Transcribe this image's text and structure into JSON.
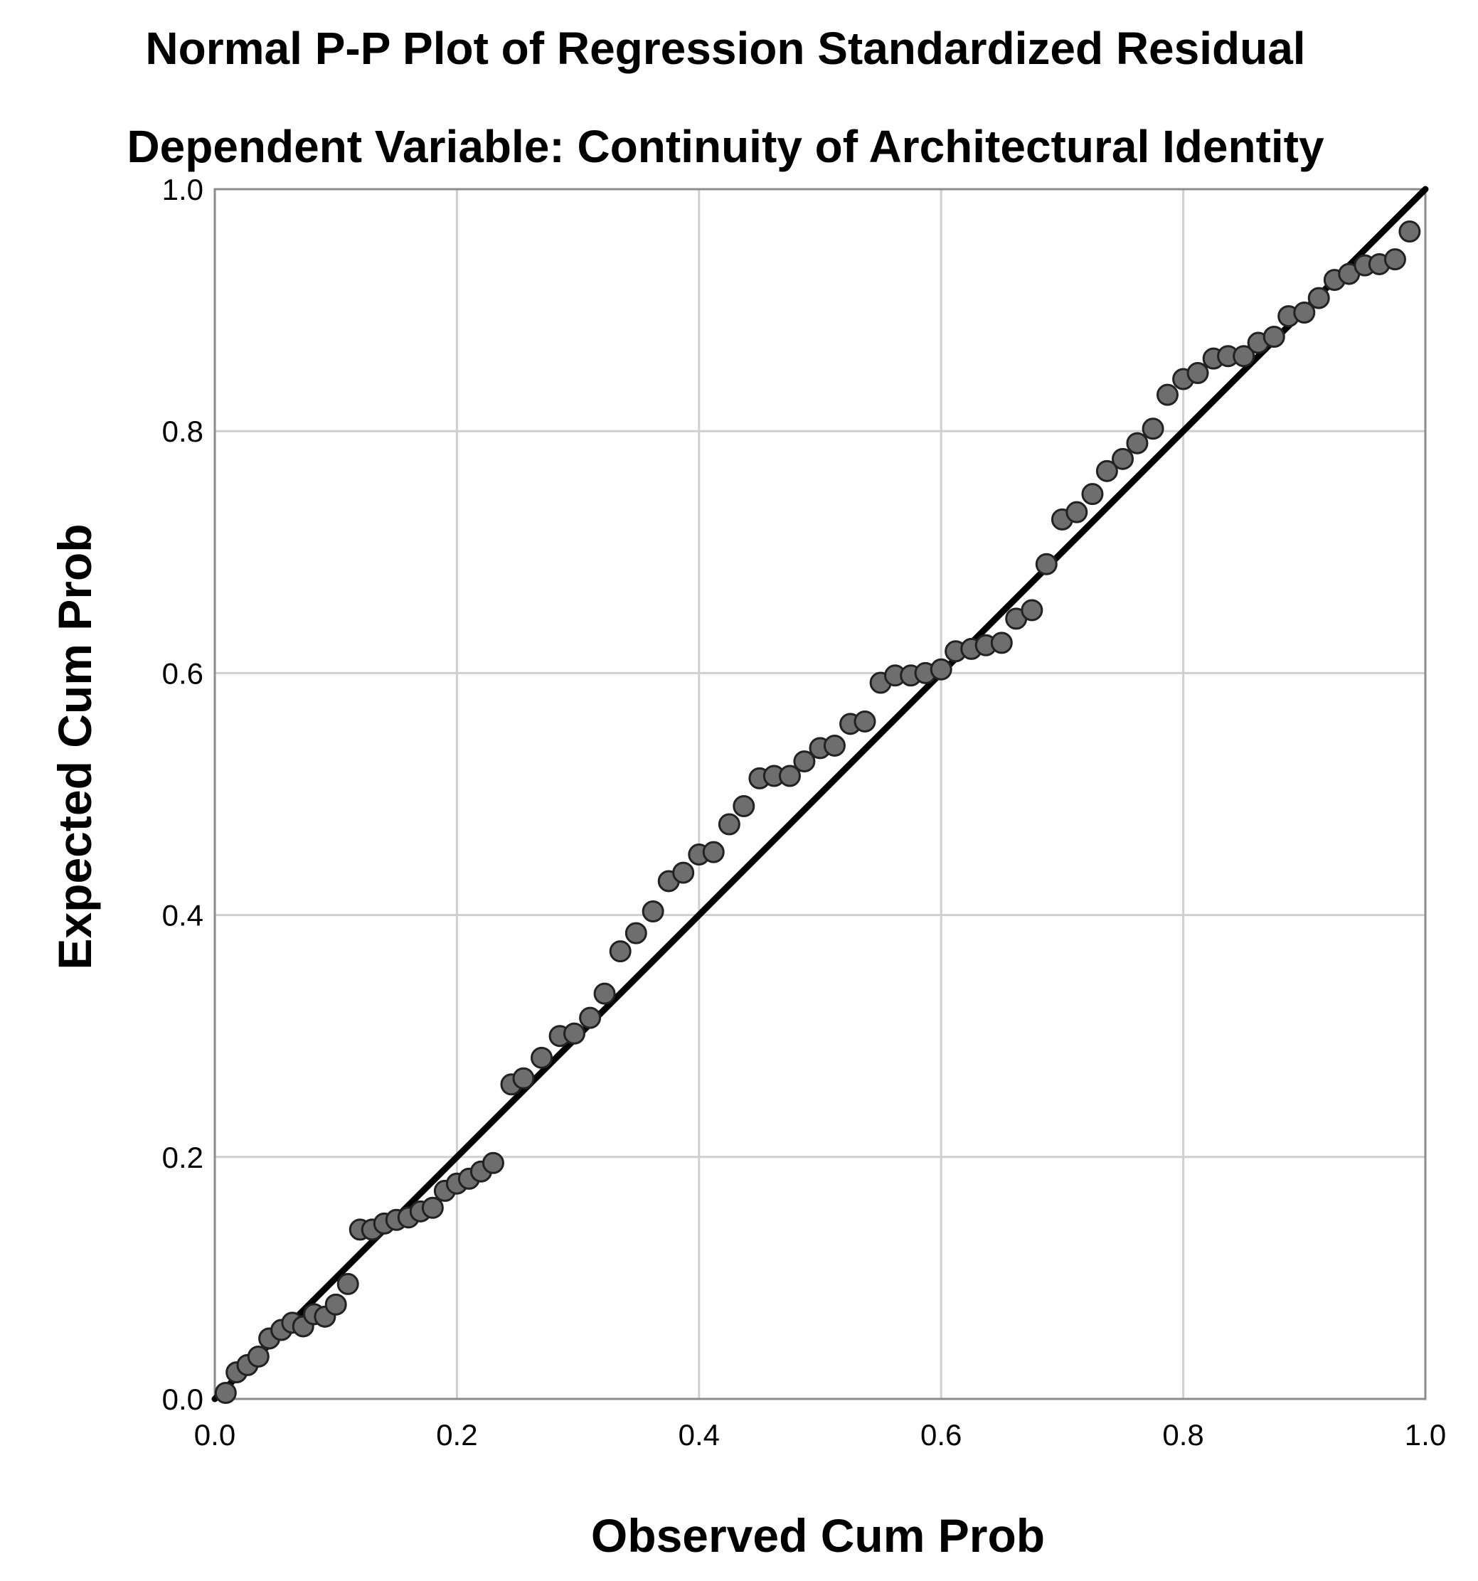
{
  "chart_data": {
    "type": "scatter",
    "title": "Normal P-P Plot of Regression Standardized Residual",
    "subtitle": "Dependent Variable: Continuity of Architectural Identity",
    "xlabel": "Observed Cum Prob",
    "ylabel": "Expected Cum Prob",
    "xlim": [
      0.0,
      1.0
    ],
    "ylim": [
      0.0,
      1.0
    ],
    "x_ticks": [
      "0.0",
      "0.2",
      "0.4",
      "0.6",
      "0.8",
      "1.0"
    ],
    "y_ticks": [
      "0.0",
      "0.2",
      "0.4",
      "0.6",
      "0.8",
      "1.0"
    ],
    "grid": true,
    "reference_line": {
      "x": [
        0.0,
        1.0
      ],
      "y": [
        0.0,
        1.0
      ]
    },
    "colors": {
      "points_fill": "#6e6e6e",
      "points_stroke": "#222222",
      "reference_line": "#000000",
      "grid": "#cfcfcf",
      "axis": "#8c8c8c"
    },
    "series": [
      {
        "points": [
          [
            0.009,
            0.005
          ],
          [
            0.018,
            0.022
          ],
          [
            0.027,
            0.028
          ],
          [
            0.036,
            0.035
          ],
          [
            0.045,
            0.05
          ],
          [
            0.055,
            0.057
          ],
          [
            0.064,
            0.063
          ],
          [
            0.073,
            0.06
          ],
          [
            0.082,
            0.07
          ],
          [
            0.091,
            0.068
          ],
          [
            0.1,
            0.078
          ],
          [
            0.11,
            0.095
          ],
          [
            0.12,
            0.14
          ],
          [
            0.13,
            0.14
          ],
          [
            0.14,
            0.145
          ],
          [
            0.15,
            0.148
          ],
          [
            0.16,
            0.15
          ],
          [
            0.17,
            0.155
          ],
          [
            0.18,
            0.158
          ],
          [
            0.19,
            0.172
          ],
          [
            0.2,
            0.178
          ],
          [
            0.21,
            0.182
          ],
          [
            0.22,
            0.188
          ],
          [
            0.23,
            0.195
          ],
          [
            0.245,
            0.26
          ],
          [
            0.255,
            0.265
          ],
          [
            0.27,
            0.282
          ],
          [
            0.285,
            0.3
          ],
          [
            0.297,
            0.302
          ],
          [
            0.31,
            0.315
          ],
          [
            0.322,
            0.335
          ],
          [
            0.335,
            0.37
          ],
          [
            0.348,
            0.385
          ],
          [
            0.362,
            0.403
          ],
          [
            0.375,
            0.428
          ],
          [
            0.387,
            0.435
          ],
          [
            0.4,
            0.45
          ],
          [
            0.412,
            0.452
          ],
          [
            0.425,
            0.475
          ],
          [
            0.437,
            0.49
          ],
          [
            0.45,
            0.513
          ],
          [
            0.462,
            0.515
          ],
          [
            0.475,
            0.515
          ],
          [
            0.487,
            0.527
          ],
          [
            0.5,
            0.538
          ],
          [
            0.512,
            0.54
          ],
          [
            0.525,
            0.558
          ],
          [
            0.537,
            0.56
          ],
          [
            0.55,
            0.592
          ],
          [
            0.562,
            0.598
          ],
          [
            0.575,
            0.598
          ],
          [
            0.587,
            0.6
          ],
          [
            0.6,
            0.603
          ],
          [
            0.612,
            0.618
          ],
          [
            0.625,
            0.62
          ],
          [
            0.637,
            0.623
          ],
          [
            0.65,
            0.625
          ],
          [
            0.662,
            0.645
          ],
          [
            0.675,
            0.652
          ],
          [
            0.687,
            0.69
          ],
          [
            0.7,
            0.727
          ],
          [
            0.712,
            0.733
          ],
          [
            0.725,
            0.748
          ],
          [
            0.737,
            0.767
          ],
          [
            0.75,
            0.777
          ],
          [
            0.762,
            0.79
          ],
          [
            0.775,
            0.802
          ],
          [
            0.787,
            0.83
          ],
          [
            0.8,
            0.843
          ],
          [
            0.812,
            0.848
          ],
          [
            0.825,
            0.86
          ],
          [
            0.837,
            0.862
          ],
          [
            0.85,
            0.862
          ],
          [
            0.862,
            0.873
          ],
          [
            0.875,
            0.878
          ],
          [
            0.887,
            0.895
          ],
          [
            0.9,
            0.898
          ],
          [
            0.912,
            0.91
          ],
          [
            0.925,
            0.925
          ],
          [
            0.937,
            0.93
          ],
          [
            0.95,
            0.937
          ],
          [
            0.962,
            0.938
          ],
          [
            0.975,
            0.942
          ],
          [
            0.987,
            0.965
          ]
        ]
      }
    ]
  }
}
